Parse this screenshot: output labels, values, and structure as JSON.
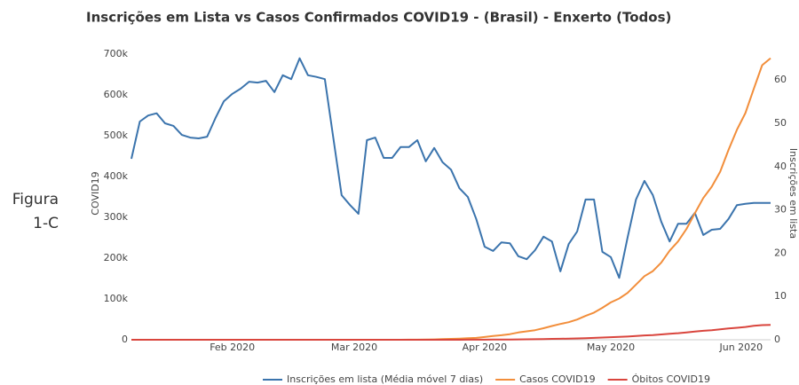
{
  "chart_data": {
    "type": "line",
    "title": "Inscrições em Lista vs Casos Confirmados COVID19 - (Brasil) - Enxerto (Todos)",
    "annotation": "Figura 1-C",
    "ylabel": "COVID19",
    "y2label": "Inscrições em lista",
    "x": [
      "2020-01-08",
      "2020-01-10",
      "2020-01-12",
      "2020-01-14",
      "2020-01-16",
      "2020-01-18",
      "2020-01-20",
      "2020-01-22",
      "2020-01-24",
      "2020-01-26",
      "2020-01-28",
      "2020-01-30",
      "2020-02-01",
      "2020-02-03",
      "2020-02-05",
      "2020-02-07",
      "2020-02-09",
      "2020-02-11",
      "2020-02-13",
      "2020-02-15",
      "2020-02-17",
      "2020-02-19",
      "2020-02-21",
      "2020-02-23",
      "2020-02-25",
      "2020-02-27",
      "2020-02-29",
      "2020-03-02",
      "2020-03-04",
      "2020-03-06",
      "2020-03-08",
      "2020-03-10",
      "2020-03-12",
      "2020-03-14",
      "2020-03-16",
      "2020-03-18",
      "2020-03-20",
      "2020-03-22",
      "2020-03-24",
      "2020-03-26",
      "2020-03-28",
      "2020-03-30",
      "2020-04-01",
      "2020-04-03",
      "2020-04-05",
      "2020-04-07",
      "2020-04-09",
      "2020-04-11",
      "2020-04-13",
      "2020-04-15",
      "2020-04-17",
      "2020-04-19",
      "2020-04-21",
      "2020-04-23",
      "2020-04-25",
      "2020-04-27",
      "2020-04-29",
      "2020-05-01",
      "2020-05-03",
      "2020-05-05",
      "2020-05-07",
      "2020-05-09",
      "2020-05-11",
      "2020-05-13",
      "2020-05-15",
      "2020-05-17",
      "2020-05-19",
      "2020-05-21",
      "2020-05-23",
      "2020-05-25",
      "2020-05-27",
      "2020-05-29",
      "2020-05-31",
      "2020-06-02",
      "2020-06-04",
      "2020-06-06",
      "2020-06-08"
    ],
    "xlim": [
      "2020-01-08",
      "2020-06-08"
    ],
    "xticks": [
      {
        "value": "2020-02-01",
        "label": "Feb 2020"
      },
      {
        "value": "2020-03-01",
        "label": "Mar 2020"
      },
      {
        "value": "2020-04-01",
        "label": "Apr 2020"
      },
      {
        "value": "2020-05-01",
        "label": "May 2020"
      },
      {
        "value": "2020-06-01",
        "label": "Jun 2020"
      }
    ],
    "ylim": [
      0,
      713000
    ],
    "yticks": [
      0,
      {
        "value": 100000,
        "label": "100k"
      },
      {
        "value": 200000,
        "label": "200k"
      },
      {
        "value": 300000,
        "label": "300k"
      },
      {
        "value": 400000,
        "label": "400k"
      },
      {
        "value": 500000,
        "label": "500k"
      },
      {
        "value": 600000,
        "label": "600k"
      },
      {
        "value": 700000,
        "label": "700k"
      }
    ],
    "y2lim": [
      0,
      67.2
    ],
    "y2ticks": [
      0,
      10,
      20,
      30,
      40,
      50,
      60
    ],
    "grid": false,
    "legend": "bottom",
    "series": [
      {
        "name": "Inscrições em lista (Média móvel 7 dias)",
        "color": "#3b74ad",
        "axis": "y2",
        "values": [
          41.8,
          50.4,
          51.8,
          52.3,
          50.0,
          49.4,
          47.3,
          46.7,
          46.5,
          46.9,
          51.2,
          55.1,
          56.8,
          58.0,
          59.6,
          59.4,
          59.8,
          57.2,
          61.1,
          60.2,
          65.0,
          61.1,
          60.7,
          60.2,
          46.7,
          33.4,
          31.1,
          29.1,
          46.1,
          46.7,
          42.0,
          42.0,
          44.5,
          44.5,
          46.1,
          41.2,
          44.3,
          41.0,
          39.3,
          35.0,
          33.0,
          27.9,
          21.5,
          20.5,
          22.5,
          22.3,
          19.3,
          18.6,
          20.7,
          23.8,
          22.7,
          15.8,
          22.1,
          25.0,
          32.4,
          32.4,
          20.3,
          19.1,
          14.3,
          23.6,
          32.4,
          36.7,
          33.4,
          27.3,
          22.7,
          26.8,
          26.8,
          29.3,
          24.2,
          25.4,
          25.6,
          27.9,
          31.1,
          31.4,
          31.6,
          31.6,
          31.6
        ]
      },
      {
        "name": "Casos COVID19",
        "color": "#f28e3b",
        "values": [
          0,
          0,
          0,
          0,
          0,
          0,
          0,
          0,
          0,
          0,
          0,
          0,
          0,
          0,
          0,
          0,
          0,
          0,
          0,
          0,
          0,
          0,
          0,
          0,
          0,
          1,
          2,
          2,
          3,
          13,
          25,
          34,
          77,
          151,
          234,
          428,
          904,
          1546,
          2201,
          2915,
          3904,
          4579,
          6836,
          9056,
          11130,
          13717,
          17857,
          20727,
          23430,
          28320,
          33682,
          38654,
          43079,
          49492,
          58509,
          66501,
          78162,
          91589,
          101147,
          114715,
          135106,
          155939,
          168331,
          188974,
          218223,
          241080,
          271628,
          310087,
          347398,
          374898,
          411821,
          465166,
          514849,
          555383,
          614941,
          672846,
          690000
        ]
      },
      {
        "name": "Óbitos COVID19",
        "color": "#d9453d",
        "values": [
          0,
          0,
          0,
          0,
          0,
          0,
          0,
          0,
          0,
          0,
          0,
          0,
          0,
          0,
          0,
          0,
          0,
          0,
          0,
          0,
          0,
          0,
          0,
          0,
          0,
          0,
          0,
          0,
          0,
          0,
          0,
          0,
          0,
          0,
          0,
          4,
          11,
          25,
          46,
          77,
          114,
          159,
          241,
          359,
          486,
          667,
          941,
          1124,
          1328,
          1736,
          2141,
          2462,
          2741,
          3313,
          4016,
          4543,
          5466,
          6329,
          7025,
          7921,
          9146,
          10627,
          11519,
          13149,
          14817,
          16118,
          17971,
          20047,
          22013,
          23473,
          25598,
          27878,
          29314,
          31199,
          34021,
          35930,
          36455
        ]
      }
    ]
  }
}
